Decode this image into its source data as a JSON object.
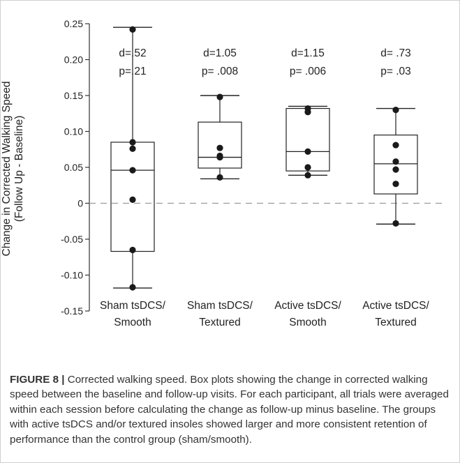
{
  "figure": {
    "label": "FIGURE 8 |",
    "caption": " Corrected walking speed. Box plots showing the change in corrected walking speed between the baseline and follow-up visits. For each participant, all trials were averaged within each session before calculating the change as follow-up minus baseline. The groups with active tsDCS and/or textured insoles showed larger and more consistent retention of performance than the control group (sham/smooth)."
  },
  "chart_data": {
    "type": "box",
    "title": "",
    "ylabel": "Change in Corrected Walking Speed",
    "ylabel_sub": "(Follow Up - Baseline)",
    "ylim": [
      -0.15,
      0.25
    ],
    "yticks": [
      0.25,
      0.2,
      0.15,
      0.1,
      0.05,
      0,
      -0.05,
      -0.1,
      -0.15
    ],
    "ytick_labels": [
      "0.25",
      "0.20",
      "0.15",
      "0.10",
      "0.05",
      "0",
      "-0.05",
      "-0.10",
      "-0.15"
    ],
    "reference_line": 0,
    "grid": false,
    "groups": [
      {
        "category": [
          "Sham tsDCS/",
          "Smooth"
        ],
        "whisker_low": -0.118,
        "q1": -0.067,
        "median": 0.046,
        "q3": 0.085,
        "whisker_high": 0.245,
        "points": [
          0.242,
          0.085,
          0.076,
          0.046,
          0.005,
          -0.065,
          -0.117
        ],
        "d_label": "d=.52",
        "p_label": "p=.21"
      },
      {
        "category": [
          "Sham tsDCS/",
          "Textured"
        ],
        "whisker_low": 0.034,
        "q1": 0.049,
        "median": 0.064,
        "q3": 0.113,
        "whisker_high": 0.15,
        "points": [
          0.148,
          0.077,
          0.066,
          0.064,
          0.036
        ],
        "d_label": "d=1.05",
        "p_label": "p= .008"
      },
      {
        "category": [
          "Active tsDCS/",
          "Smooth"
        ],
        "whisker_low": 0.039,
        "q1": 0.045,
        "median": 0.072,
        "q3": 0.132,
        "whisker_high": 0.135,
        "points": [
          0.132,
          0.127,
          0.072,
          0.05,
          0.039
        ],
        "d_label": "d=1.15",
        "p_label": "p= .006"
      },
      {
        "category": [
          "Active tsDCS/",
          "Textured"
        ],
        "whisker_low": -0.029,
        "q1": 0.013,
        "median": 0.055,
        "q3": 0.095,
        "whisker_high": 0.132,
        "points": [
          0.13,
          0.081,
          0.058,
          0.047,
          0.027,
          -0.028
        ],
        "d_label": "d= .73",
        "p_label": "p= .03"
      }
    ]
  }
}
